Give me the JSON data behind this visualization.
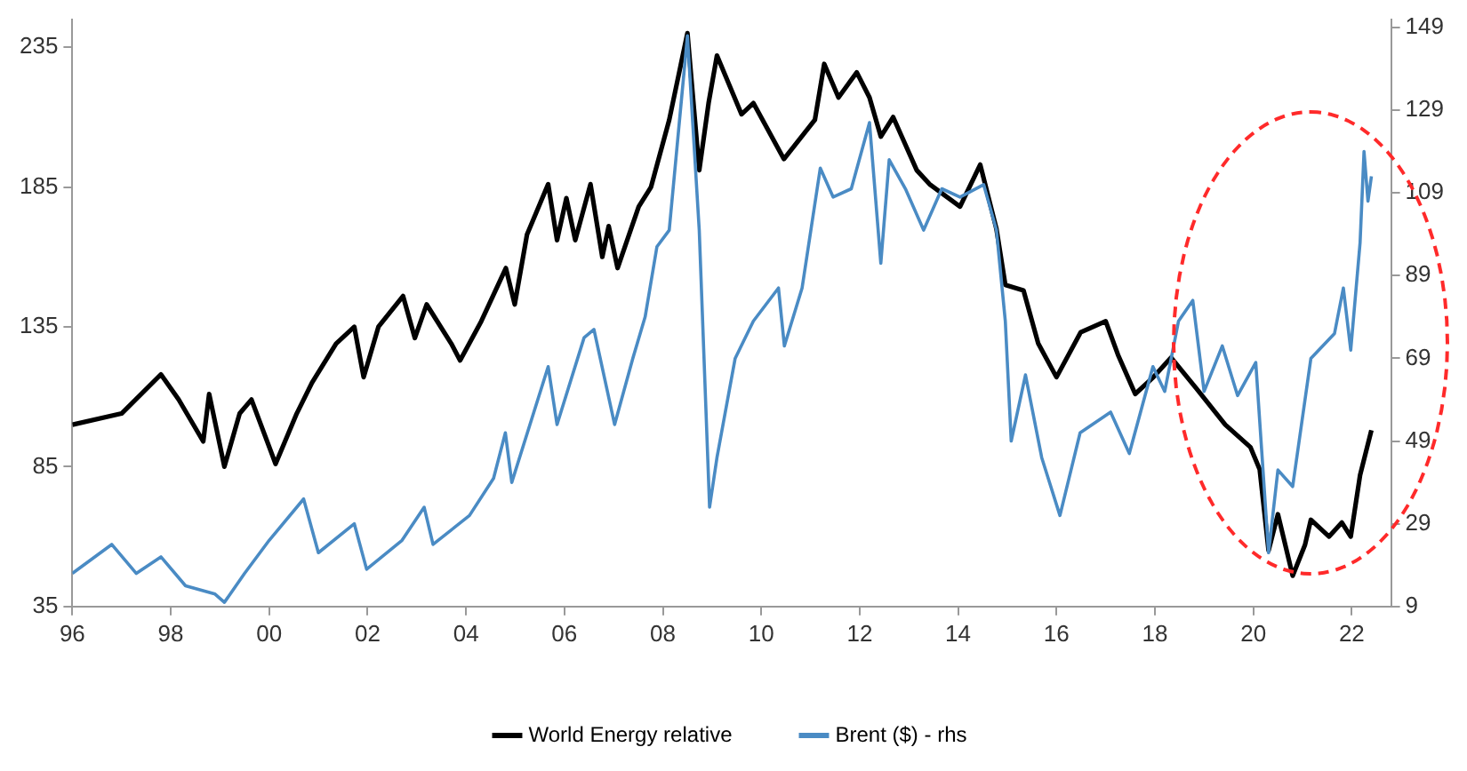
{
  "chart_data": {
    "type": "line",
    "xlim": [
      1996,
      2022.8
    ],
    "xticks": [
      {
        "value": 1996,
        "label": "96"
      },
      {
        "value": 1998,
        "label": "98"
      },
      {
        "value": 2000,
        "label": "00"
      },
      {
        "value": 2002,
        "label": "02"
      },
      {
        "value": 2004,
        "label": "04"
      },
      {
        "value": 2006,
        "label": "06"
      },
      {
        "value": 2008,
        "label": "08"
      },
      {
        "value": 2010,
        "label": "10"
      },
      {
        "value": 2012,
        "label": "12"
      },
      {
        "value": 2014,
        "label": "14"
      },
      {
        "value": 2016,
        "label": "16"
      },
      {
        "value": 2018,
        "label": "18"
      },
      {
        "value": 2020,
        "label": "20"
      },
      {
        "value": 2022,
        "label": "22"
      }
    ],
    "ylim": [
      35,
      245
    ],
    "yticks": [
      35,
      85,
      135,
      185,
      235
    ],
    "y2lim": [
      9,
      151
    ],
    "y2ticks": [
      9,
      29,
      49,
      69,
      89,
      109,
      129,
      149
    ],
    "grid": false,
    "legend": "bottom",
    "marker": "none",
    "line_style": "solid",
    "series": [
      {
        "name": "World Energy relative",
        "color": "#000000",
        "x": [
          1996.0,
          1997.0,
          1997.8,
          1998.16,
          1998.66,
          1998.78,
          1999.09,
          1999.4,
          1999.64,
          2000.13,
          2000.56,
          2000.87,
          2001.36,
          2001.73,
          2001.92,
          2002.22,
          2002.72,
          2002.96,
          2003.2,
          2003.7,
          2003.88,
          2004.31,
          2004.81,
          2004.99,
          2005.24,
          2005.67,
          2005.85,
          2006.04,
          2006.22,
          2006.53,
          2006.77,
          2006.9,
          2007.08,
          2007.51,
          2007.76,
          2008.13,
          2008.5,
          2008.74,
          2008.93,
          2009.1,
          2009.6,
          2009.84,
          2010.46,
          2011.09,
          2011.28,
          2011.57,
          2011.94,
          2012.2,
          2012.43,
          2012.68,
          2013.16,
          2013.42,
          2014.04,
          2014.45,
          2014.78,
          2014.96,
          2015.33,
          2015.63,
          2016.0,
          2016.49,
          2017.0,
          2017.25,
          2017.6,
          2017.97,
          2018.33,
          2018.84,
          2019.43,
          2019.94,
          2020.13,
          2020.31,
          2020.5,
          2020.8,
          2021.05,
          2021.17,
          2021.54,
          2021.8,
          2021.98,
          2022.17,
          2022.4
        ],
        "values": [
          100,
          104,
          118,
          109,
          94,
          111,
          85,
          104,
          109,
          86,
          104,
          115,
          129,
          135,
          117,
          135,
          146,
          131,
          143,
          129,
          123,
          137,
          156,
          143,
          168,
          186,
          166,
          181,
          166,
          186,
          160,
          171,
          156,
          178,
          185,
          209,
          240,
          191,
          215,
          232,
          211,
          215,
          195,
          209,
          229,
          217,
          226,
          217,
          203,
          210,
          191,
          186,
          178,
          193,
          170,
          150,
          148,
          129,
          117,
          133,
          137,
          125,
          111,
          117,
          124,
          113,
          100,
          92,
          84,
          55,
          68,
          46,
          57,
          66,
          60,
          65,
          60,
          82,
          98
        ]
      },
      {
        "name": "Brent ($) - rhs",
        "color": "#4a8bc4",
        "axis": "y2",
        "x": [
          1996.0,
          1996.8,
          1997.3,
          1997.8,
          1998.3,
          1998.9,
          1999.09,
          1999.5,
          2000.0,
          2000.7,
          2001.0,
          2001.73,
          2001.98,
          2002.7,
          2003.15,
          2003.33,
          2004.07,
          2004.56,
          2004.8,
          2004.93,
          2005.67,
          2005.85,
          2006.4,
          2006.6,
          2007.02,
          2007.39,
          2007.64,
          2007.88,
          2008.13,
          2008.5,
          2008.74,
          2008.95,
          2009.1,
          2009.47,
          2009.84,
          2010.35,
          2010.47,
          2010.83,
          2011.2,
          2011.46,
          2011.83,
          2012.2,
          2012.43,
          2012.6,
          2012.93,
          2013.3,
          2013.67,
          2014.04,
          2014.52,
          2014.78,
          2014.96,
          2015.08,
          2015.37,
          2015.7,
          2016.07,
          2016.48,
          2017.1,
          2017.48,
          2017.96,
          2018.2,
          2018.48,
          2018.77,
          2019.0,
          2019.37,
          2019.68,
          2020.05,
          2020.31,
          2020.5,
          2020.8,
          2021.17,
          2021.65,
          2021.83,
          2021.98,
          2022.17,
          2022.25,
          2022.33,
          2022.4
        ],
        "values": [
          17,
          24,
          17,
          21,
          14,
          12,
          10,
          17,
          25,
          35,
          22,
          29,
          18,
          25,
          33,
          24,
          31,
          40,
          51,
          39,
          67,
          53,
          74,
          76,
          53,
          69,
          79,
          96,
          100,
          147,
          100,
          33,
          45,
          69,
          78,
          86,
          72,
          86,
          115,
          108,
          110,
          126,
          92,
          117,
          110,
          100,
          110,
          108,
          111,
          100,
          78,
          49,
          65,
          45,
          31,
          51,
          56,
          46,
          67,
          61,
          78,
          83,
          61,
          72,
          60,
          68,
          22,
          42,
          38,
          69,
          75,
          86,
          71,
          97,
          119,
          107,
          113
        ]
      }
    ]
  }
}
